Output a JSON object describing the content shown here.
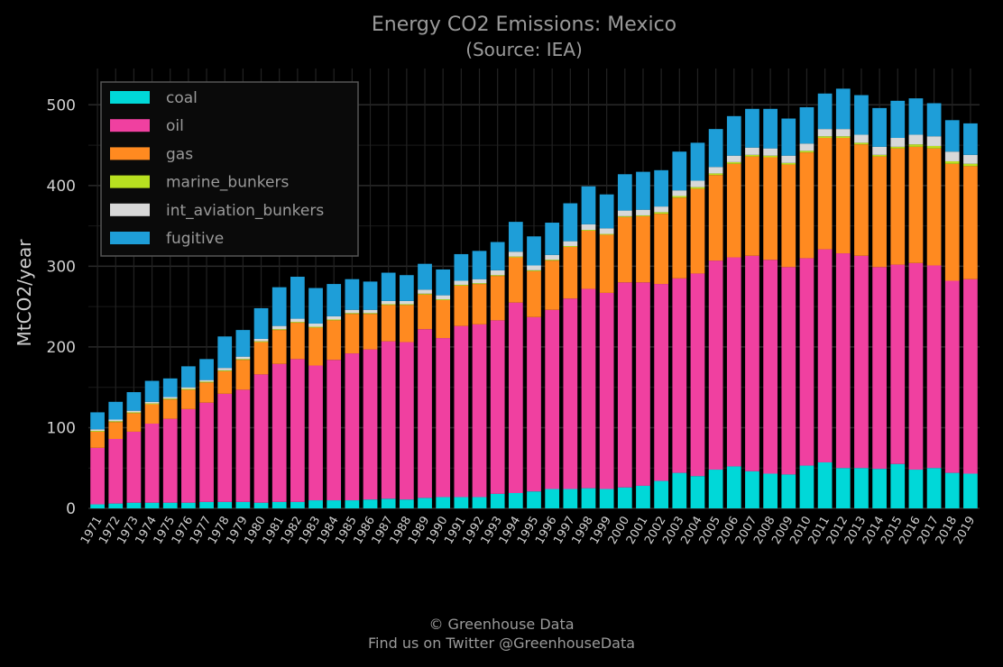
{
  "chart_data": {
    "type": "bar",
    "stacked": true,
    "title": "Energy CO2 Emissions: Mexico",
    "subtitle": "(Source: IEA)",
    "xlabel": "",
    "ylabel": "MtCO2/year",
    "ylim": [
      0,
      545
    ],
    "yticks": [
      0,
      100,
      200,
      300,
      400,
      500
    ],
    "grid": true,
    "legend_position": "top-left",
    "categories": [
      "1971",
      "1972",
      "1973",
      "1974",
      "1975",
      "1976",
      "1977",
      "1978",
      "1979",
      "1980",
      "1981",
      "1982",
      "1983",
      "1984",
      "1985",
      "1986",
      "1987",
      "1988",
      "1989",
      "1990",
      "1991",
      "1992",
      "1993",
      "1994",
      "1995",
      "1996",
      "1997",
      "1998",
      "1999",
      "2000",
      "2001",
      "2002",
      "2003",
      "2004",
      "2005",
      "2006",
      "2007",
      "2008",
      "2009",
      "2010",
      "2011",
      "2012",
      "2013",
      "2014",
      "2015",
      "2016",
      "2017",
      "2018",
      "2019"
    ],
    "series": [
      {
        "name": "coal",
        "color": "#00d8d8",
        "values": [
          5,
          6,
          7,
          7,
          7,
          7,
          8,
          8,
          8,
          7,
          8,
          8,
          10,
          10,
          10,
          11,
          12,
          11,
          13,
          14,
          14,
          14,
          18,
          19,
          21,
          24,
          24,
          25,
          24,
          26,
          28,
          34,
          44,
          40,
          48,
          52,
          46,
          43,
          42,
          53,
          57,
          50,
          50,
          49,
          55,
          48,
          50,
          44,
          43
        ]
      },
      {
        "name": "oil",
        "color": "#f040a0",
        "values": [
          70,
          80,
          88,
          98,
          104,
          116,
          123,
          134,
          139,
          159,
          171,
          177,
          167,
          174,
          182,
          186,
          195,
          195,
          209,
          197,
          212,
          214,
          215,
          236,
          216,
          222,
          236,
          247,
          243,
          254,
          252,
          244,
          241,
          251,
          259,
          259,
          267,
          265,
          257,
          257,
          264,
          266,
          263,
          250,
          247,
          256,
          251,
          238,
          241
        ]
      },
      {
        "name": "gas",
        "color": "#ff8a20",
        "values": [
          20,
          21,
          23,
          24,
          24,
          24,
          25,
          28,
          37,
          40,
          42,
          45,
          47,
          49,
          49,
          44,
          45,
          46,
          43,
          47,
          50,
          50,
          55,
          56,
          57,
          61,
          64,
          72,
          72,
          81,
          82,
          87,
          100,
          105,
          106,
          116,
          123,
          127,
          127,
          131,
          138,
          143,
          138,
          137,
          144,
          144,
          145,
          145,
          140
        ]
      },
      {
        "name": "marine_bunkers",
        "color": "#b8e020",
        "values": [
          1,
          1,
          1,
          1,
          1,
          1,
          1,
          1,
          1,
          1,
          1,
          1,
          1,
          1,
          1,
          1,
          1,
          1,
          1,
          1,
          1,
          1,
          1,
          1,
          1,
          1,
          1,
          1,
          1,
          1,
          1,
          2,
          2,
          2,
          2,
          2,
          2,
          2,
          2,
          2,
          2,
          2,
          2,
          2,
          2,
          3,
          3,
          3,
          3
        ]
      },
      {
        "name": "int_aviation_bunkers",
        "color": "#d8d8d8",
        "values": [
          2,
          2,
          2,
          2,
          2,
          2,
          2,
          3,
          3,
          3,
          4,
          4,
          4,
          4,
          4,
          4,
          4,
          4,
          5,
          5,
          5,
          5,
          6,
          6,
          6,
          6,
          6,
          7,
          7,
          7,
          7,
          7,
          7,
          8,
          8,
          8,
          9,
          9,
          9,
          9,
          9,
          9,
          10,
          10,
          11,
          12,
          12,
          12,
          11
        ]
      },
      {
        "name": "fugitive",
        "color": "#1e9ed8",
        "values": [
          21,
          22,
          23,
          26,
          23,
          26,
          26,
          39,
          33,
          38,
          48,
          52,
          44,
          40,
          38,
          35,
          35,
          32,
          32,
          32,
          33,
          35,
          35,
          37,
          36,
          40,
          47,
          47,
          42,
          45,
          47,
          45,
          48,
          47,
          47,
          49,
          48,
          49,
          46,
          45,
          44,
          50,
          49,
          48,
          46,
          45,
          41,
          39,
          39
        ]
      }
    ],
    "footer_lines": [
      "© Greenhouse Data",
      "Find us on Twitter @GreenhouseData"
    ]
  }
}
